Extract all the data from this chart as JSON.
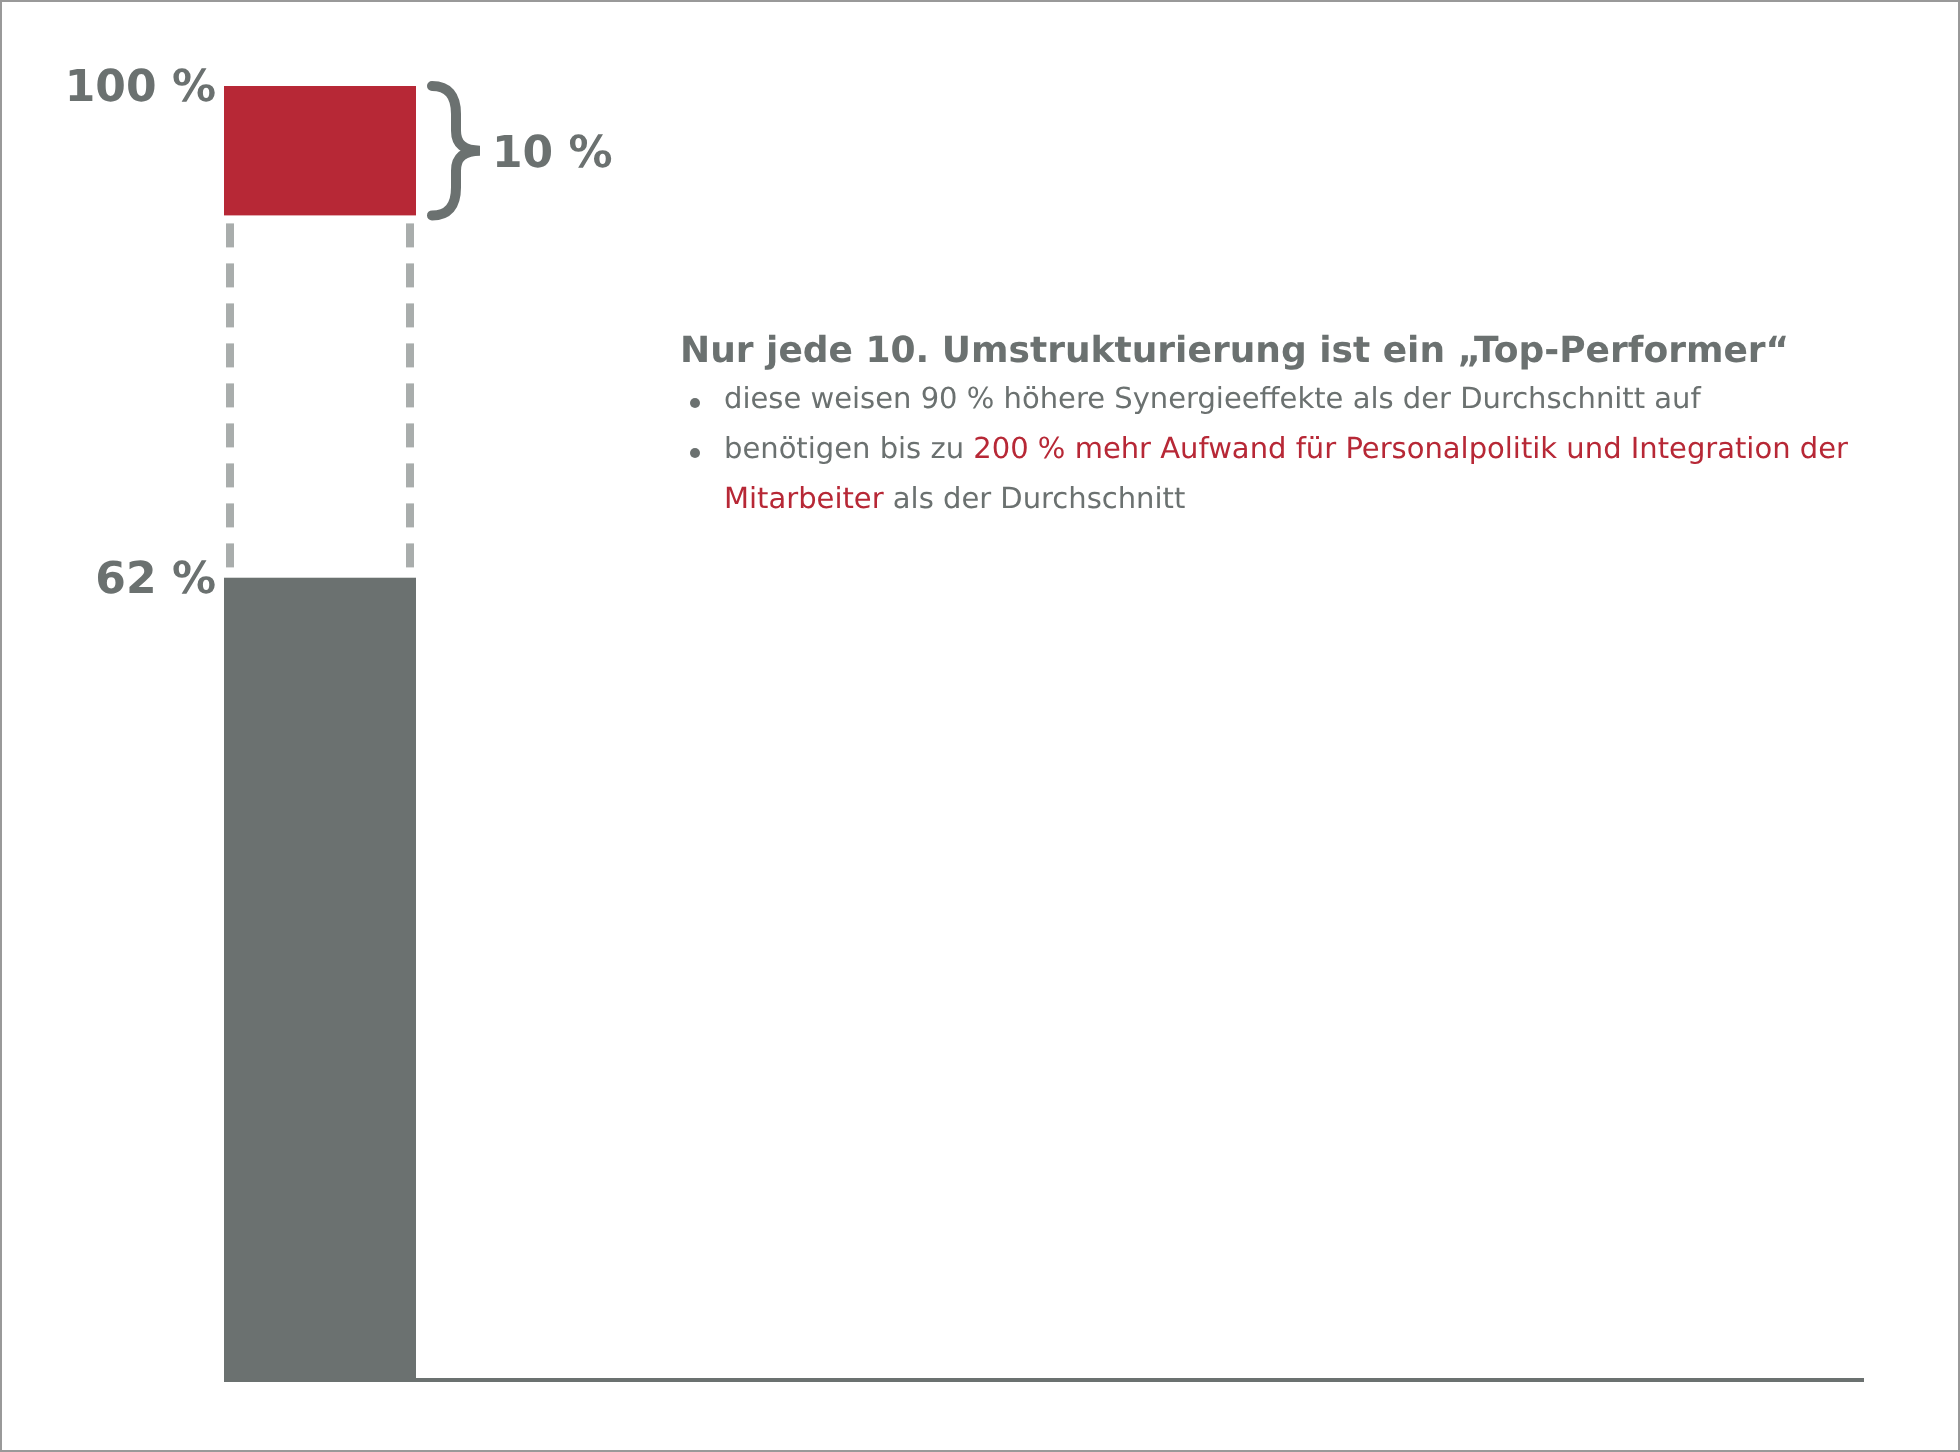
{
  "chart_data": {
    "type": "bar",
    "categories": [
      null
    ],
    "stacked": true,
    "ylim": [
      0,
      100
    ],
    "tick_labels": "y",
    "yticks": [
      {
        "value": 62,
        "label": "62 %"
      },
      {
        "value": 100,
        "label": "100 %"
      }
    ],
    "series": [
      {
        "color": "#6b7170",
        "values": [
          62
        ]
      },
      {
        "color": "#a9adac",
        "values": [
          28
        ],
        "line_style": "dashed"
      },
      {
        "color": "#b72836",
        "values": [
          10
        ]
      }
    ],
    "annotations": [
      "10 %",
      "Nur jede 10. Umstrukturierung ist ein „Top-Performer“",
      "diese weisen 90 % höhere Synergieeffekte als der Durchschnitt auf",
      "benötigen bis zu ",
      "200 % mehr Aufwand für Personalpolitik und Integration der Mitarbeiter",
      " als der Durchschnitt"
    ]
  }
}
